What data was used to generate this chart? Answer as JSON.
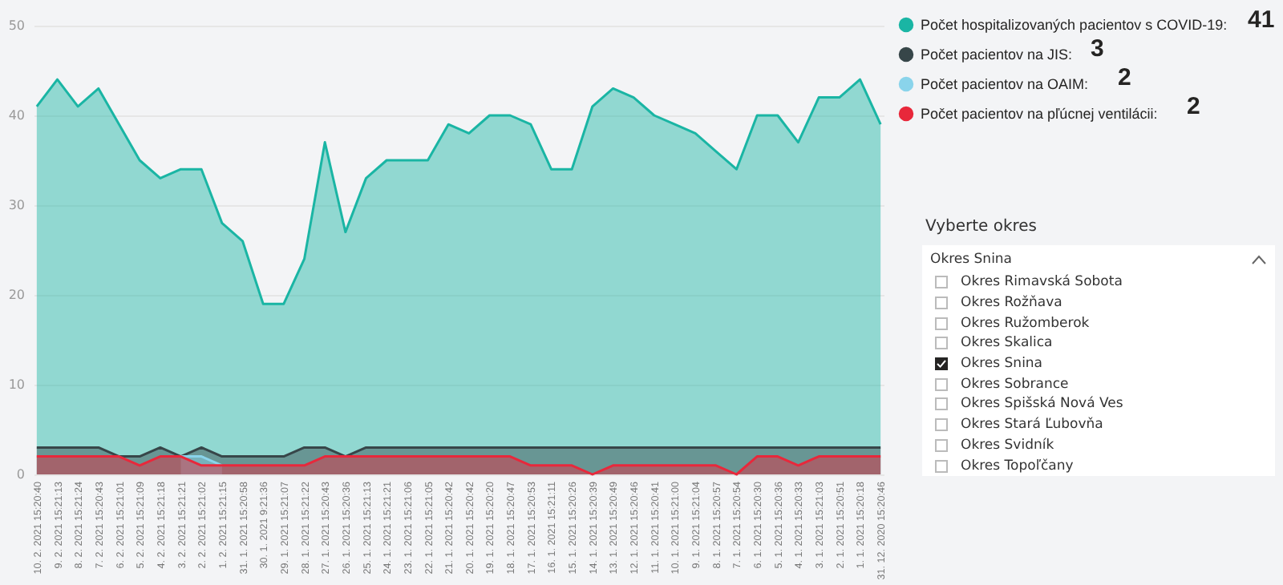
{
  "chart_data": [
    {
      "type": "area",
      "categories": [
        "10. 2. 2021 15:20:40",
        "9. 2. 2021 15:21:13",
        "8. 2. 2021 15:21:24",
        "7. 2. 2021 15:20:43",
        "6. 2. 2021 15:21:01",
        "5. 2. 2021 15:21:09",
        "4. 2. 2021 15:21:18",
        "3. 2. 2021 15:21:21",
        "2. 2. 2021 15:21:02",
        "1. 2. 2021 15:21:15",
        "31. 1. 2021 15:20:58",
        "30. 1. 2021 9:21:36",
        "29. 1. 2021 15:21:07",
        "28. 1. 2021 15:21:22",
        "27. 1. 2021 15:20:43",
        "26. 1. 2021 15:20:36",
        "25. 1. 2021 15:21:13",
        "24. 1. 2021 15:21:21",
        "23. 1. 2021 15:21:06",
        "22. 1. 2021 15:21:05",
        "21. 1. 2021 15:20:42",
        "20. 1. 2021 15:20:42",
        "19. 1. 2021 15:20:20",
        "18. 1. 2021 15:20:47",
        "17. 1. 2021 15:20:53",
        "16. 1. 2021 15:21:11",
        "15. 1. 2021 15:20:26",
        "14. 1. 2021 15:20:39",
        "13. 1. 2021 15:20:49",
        "12. 1. 2021 15:20:46",
        "11. 1. 2021 15:20:41",
        "10. 1. 2021 15:21:00",
        "9. 1. 2021 15:21:04",
        "8. 1. 2021 15:20:57",
        "7. 1. 2021 15:20:54",
        "6. 1. 2021 15:20:30",
        "5. 1. 2021 15:20:36",
        "4. 1. 2021 15:20:33",
        "3. 1. 2021 15:21:03",
        "2. 1. 2021 15:20:51",
        "1. 1. 2021 15:20:18",
        "31. 12. 2020 15:20:46"
      ],
      "series": [
        {
          "name": "Počet hospitalizovaných pacientov s COVID-19:",
          "color": "#1ab5a4",
          "values": [
            41,
            44,
            41,
            43,
            39,
            35,
            33,
            34,
            34,
            28,
            26,
            19,
            19,
            24,
            37,
            27,
            33,
            35,
            35,
            35,
            39,
            38,
            40,
            40,
            39,
            34,
            34,
            41,
            43,
            42,
            40,
            39,
            38,
            36,
            34,
            40,
            40,
            37,
            42,
            42,
            44,
            39
          ]
        },
        {
          "name": "Počet pacientov na JIS:",
          "color": "#374649",
          "values": [
            3,
            3,
            3,
            3,
            2,
            2,
            3,
            2,
            3,
            2,
            2,
            2,
            2,
            3,
            3,
            2,
            3,
            3,
            3,
            3,
            3,
            3,
            3,
            3,
            3,
            3,
            3,
            3,
            3,
            3,
            3,
            3,
            3,
            3,
            3,
            3,
            3,
            3,
            3,
            3,
            3,
            3
          ]
        },
        {
          "name": "Počet pacientov na OAIM:",
          "color": "#8ad4eb",
          "values": [
            null,
            null,
            null,
            null,
            null,
            null,
            null,
            2,
            2,
            1,
            null,
            null,
            null,
            null,
            null,
            null,
            null,
            null,
            null,
            null,
            null,
            null,
            null,
            null,
            null,
            null,
            null,
            null,
            null,
            null,
            null,
            null,
            null,
            null,
            null,
            null,
            null,
            null,
            null,
            null,
            null,
            null
          ]
        },
        {
          "name": "Počet pacientov na pľúcnej ventilácii:",
          "color": "#e8283b",
          "values": [
            2,
            2,
            2,
            2,
            2,
            1,
            2,
            2,
            1,
            1,
            1,
            1,
            1,
            1,
            2,
            2,
            2,
            2,
            2,
            2,
            2,
            2,
            2,
            2,
            1,
            1,
            1,
            0,
            1,
            1,
            1,
            1,
            1,
            1,
            0,
            2,
            2,
            1,
            2,
            2,
            2,
            2
          ]
        }
      ],
      "ylim": [
        0,
        50
      ],
      "yticks": [
        0,
        10,
        20,
        30,
        40,
        50
      ],
      "grid": "y",
      "legend": "top right",
      "annotations": [
        "41",
        "3",
        "2",
        "2"
      ]
    },
    {
      "type": "other",
      "title": "Vyberte okres",
      "annotations": [
        "Okres Snina",
        "Okres Rimavská Sobota",
        "Okres Rožňava",
        "Okres Ružomberok",
        "Okres Skalica",
        "Okres Snina",
        "Okres Sobrance",
        "Okres Spišská Nová Ves",
        "Okres Stará Ľubovňa",
        "Okres Svidník",
        "Okres Topoľčany"
      ]
    }
  ]
}
